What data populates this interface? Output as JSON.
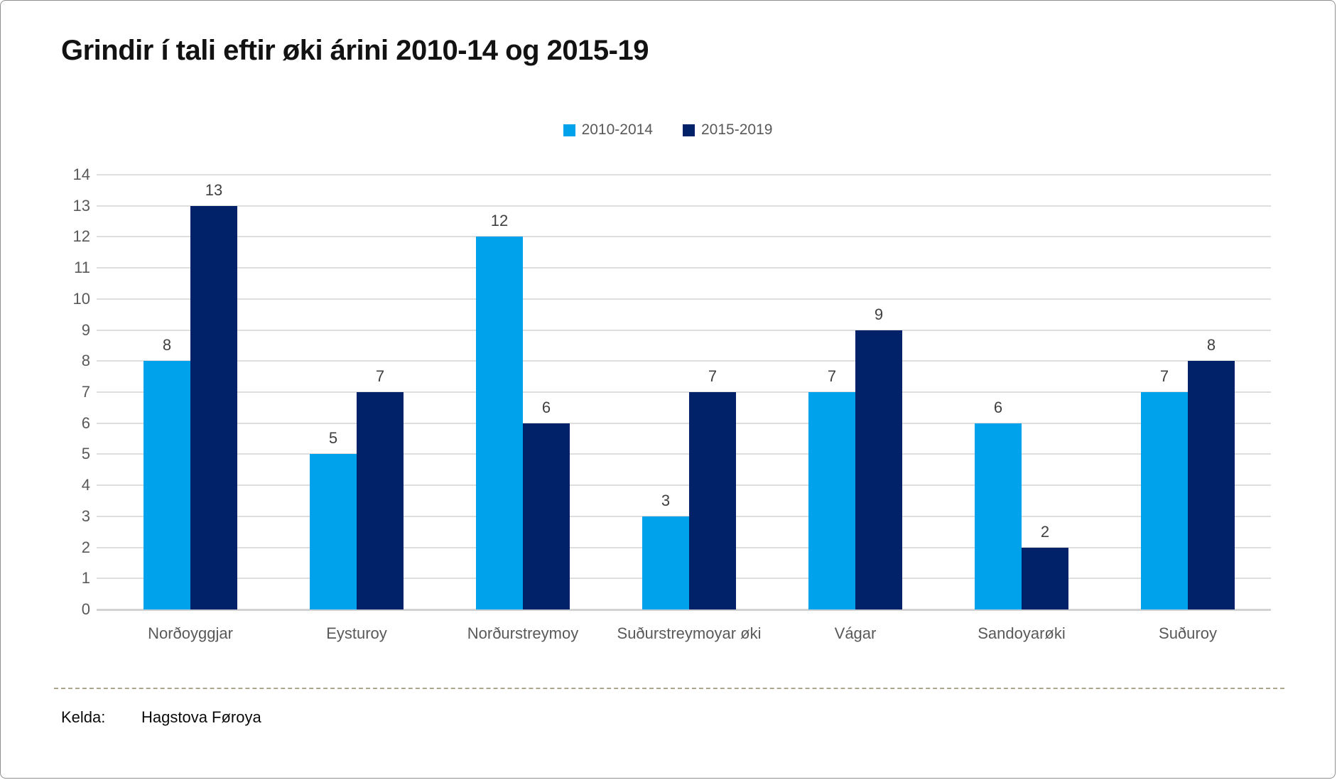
{
  "title": "Grindir í tali eftir øki árini 2010-14 og 2015-19",
  "legend": [
    {
      "label": "2010-2014",
      "color": "#00A2EC"
    },
    {
      "label": "2015-2019",
      "color": "#012169"
    }
  ],
  "chart_data": {
    "type": "bar",
    "title": "Grindir í tali eftir øki árini 2010-14 og 2015-19",
    "categories": [
      "Norðoyggjar",
      "Eysturoy",
      "Norðurstreymoy",
      "Suðurstreymoyar øki",
      "Vágar",
      "Sandoyarøki",
      "Suðuroy"
    ],
    "series": [
      {
        "name": "2010-2014",
        "color": "#00A2EC",
        "values": [
          8,
          5,
          12,
          3,
          7,
          6,
          7
        ]
      },
      {
        "name": "2015-2019",
        "color": "#012169",
        "values": [
          13,
          7,
          6,
          7,
          9,
          2,
          8
        ]
      }
    ],
    "xlabel": "",
    "ylabel": "",
    "ylim": [
      0,
      14
    ],
    "ytick_step": 1,
    "grid": true,
    "data_labels": true,
    "legend_position": "top-center"
  },
  "footer": {
    "label": "Kelda:",
    "source": "Hagstova Føroya"
  },
  "colors": {
    "series1": "#00A2EC",
    "series2": "#012169",
    "gridline": "#DEDEDE",
    "zero_line": "#D2D2D2",
    "axis_text": "#595959",
    "data_label_text": "#404040",
    "separator": "#ABA78D",
    "title_text": "#121212"
  }
}
